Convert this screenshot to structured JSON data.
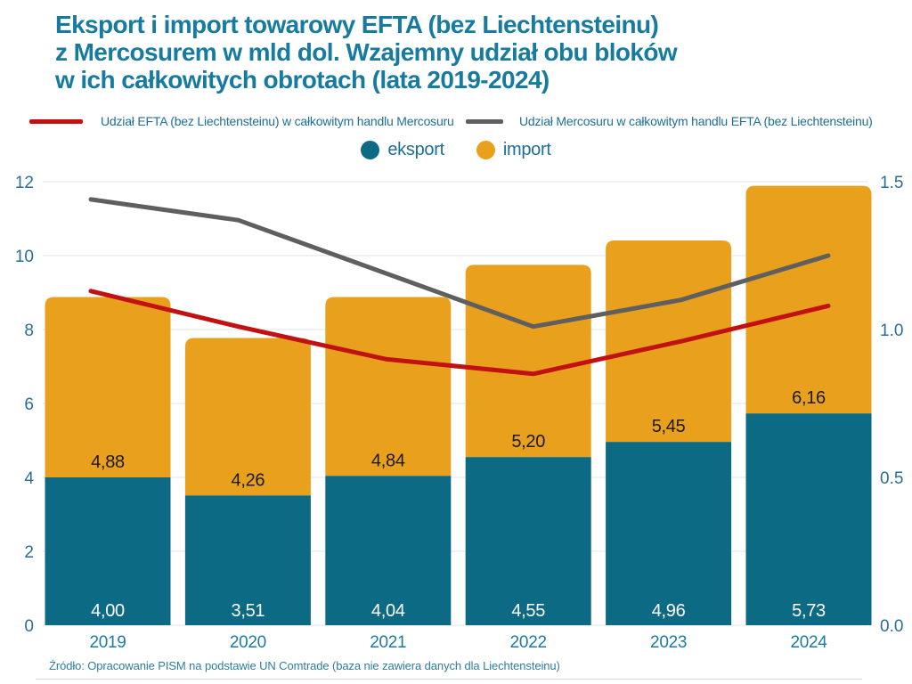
{
  "title": {
    "lines": [
      "Eksport i import towarowy EFTA (bez Liechtensteinu)",
      "z Mercosurem w mld dol. Wzajemny udział obu bloków",
      "w ich całkowitych obrotach (lata 2019-2024)"
    ]
  },
  "legend": {
    "line_series": [
      {
        "label": "Udział EFTA (bez Liechtensteinu) w całkowitym handlu Mercosuru",
        "color": "#c21113"
      },
      {
        "label": "Udział Mercosuru w całkowitym handlu EFTA (bez Liechtensteinu)",
        "color": "#5f5f5f"
      }
    ],
    "bar_series": [
      {
        "label": "eksport",
        "color": "#0d6a85"
      },
      {
        "label": "import",
        "color": "#e9a11d"
      }
    ]
  },
  "chart_data": {
    "type": "bar",
    "subtype": "stacked-bars-with-overlay-lines",
    "categories": [
      "2019",
      "2020",
      "2021",
      "2022",
      "2023",
      "2024"
    ],
    "bar_series": [
      {
        "name": "eksport",
        "axis": "left",
        "color": "#0d6a85",
        "label_color": "#ffffff",
        "values": [
          4.0,
          3.51,
          4.04,
          4.55,
          4.96,
          5.73
        ],
        "labels": [
          "4,00",
          "3,51",
          "4,04",
          "4,55",
          "4,96",
          "5,73"
        ]
      },
      {
        "name": "import",
        "axis": "left",
        "color": "#e9a11d",
        "label_color": "#1a1a1a",
        "values": [
          4.88,
          4.26,
          4.84,
          5.2,
          5.45,
          6.16
        ],
        "labels": [
          "4,88",
          "4,26",
          "4,84",
          "5,20",
          "5,45",
          "6,16"
        ]
      }
    ],
    "line_series": [
      {
        "name": "Udział EFTA (bez Liechtensteinu) w całkowitym handlu Mercosuru",
        "axis": "right",
        "color": "#c21113",
        "values": [
          1.13,
          1.01,
          0.9,
          0.85,
          0.96,
          1.08
        ]
      },
      {
        "name": "Udział Mercosuru w całkowitym handlu EFTA (bez Liechtensteinu)",
        "axis": "right",
        "color": "#5f5f5f",
        "values": [
          1.44,
          1.37,
          1.19,
          1.01,
          1.1,
          1.25
        ]
      }
    ],
    "left_axis": {
      "range": [
        0,
        12
      ],
      "ticks": [
        0,
        2,
        4,
        6,
        8,
        10,
        12
      ],
      "tick_color": "#2b6e93"
    },
    "right_axis": {
      "range": [
        0,
        1.5
      ],
      "ticks": [
        "0.0",
        "0.5",
        "1.0",
        "1.5"
      ],
      "tick_color": "#2b6e93"
    },
    "grid": true,
    "grid_color": "#dce5ec",
    "category_label_color": "#1d7ba0",
    "legend_position": "top"
  },
  "source": "Źródło: Opracowanie PISM na podstawie UN Comtrade (baza nie zawiera danych dla Liechtensteinu)"
}
